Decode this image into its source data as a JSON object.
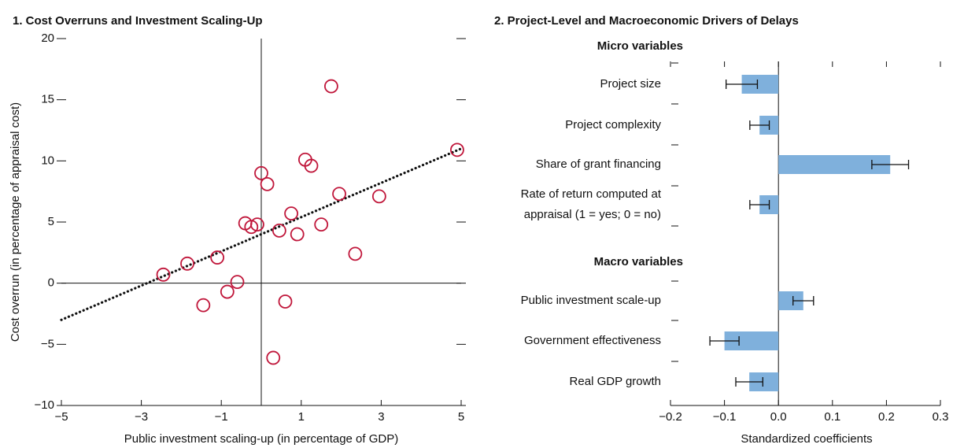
{
  "chart_data": [
    {
      "type": "scatter",
      "title": "1. Cost Overruns and Investment Scaling-Up",
      "x_label": "Public investment scaling-up (in percentage of GDP)",
      "y_label": "Cost overrun (in percentage of appraisal cost)",
      "color": "#c0163a",
      "x": [
        -2.45,
        -1.85,
        -1.1,
        -1.45,
        -0.85,
        -0.6,
        -0.4,
        -0.25,
        -0.1,
        0.0,
        0.15,
        0.3,
        0.45,
        0.6,
        0.75,
        0.9,
        1.1,
        1.25,
        1.5,
        1.75,
        1.95,
        2.35,
        2.95,
        4.9
      ],
      "values": [
        0.7,
        1.6,
        2.1,
        -1.8,
        -0.7,
        0.1,
        4.9,
        4.6,
        4.8,
        9.0,
        8.1,
        -6.1,
        4.3,
        -1.5,
        5.7,
        4.0,
        10.1,
        9.6,
        4.8,
        16.1,
        7.3,
        2.4,
        7.1,
        10.9
      ],
      "trend": {
        "x": [
          -5,
          5
        ],
        "values": [
          -3,
          11
        ]
      },
      "xlim": [
        -5,
        5
      ],
      "xticks": [
        {
          "value": -5,
          "label": "−5"
        },
        {
          "value": -3,
          "label": "−3"
        },
        {
          "value": -1,
          "label": "−1"
        },
        1,
        3,
        5
      ],
      "ylim": [
        -10,
        20
      ],
      "yticks": [
        {
          "value": -10,
          "label": "−10"
        },
        {
          "value": -5,
          "label": "−5"
        },
        0,
        5,
        10,
        15,
        20
      ]
    },
    {
      "type": "hbar",
      "title": "2. Project-Level and Macroeconomic Drivers of Delays",
      "x_label": "Standardized coefficients",
      "color": "#7fb0dc",
      "groups": [
        {
          "name": "Micro variables",
          "categories": [
            "Project size",
            "Project complexity",
            "Share of grant financing",
            [
              "Rate of return computed at",
              "appraisal (1 = yes; 0 = no)"
            ]
          ],
          "values": [
            -0.068,
            -0.035,
            0.207,
            -0.035
          ],
          "errors": [
            0.029,
            0.018,
            0.034,
            0.018
          ]
        },
        {
          "name": "Macro variables",
          "categories": [
            "Public investment scale-up",
            "Government effectiveness",
            "Real GDP growth"
          ],
          "values": [
            0.046,
            -0.1,
            -0.054
          ],
          "errors": [
            0.019,
            0.027,
            0.025
          ]
        }
      ],
      "xlim": [
        -0.2,
        0.3
      ],
      "xticks": [
        {
          "value": -0.2,
          "label": "−0.2"
        },
        {
          "value": -0.1,
          "label": "−0.1"
        },
        {
          "value": 0,
          "label": "0.0"
        },
        0.1,
        0.2,
        0.3
      ]
    }
  ]
}
